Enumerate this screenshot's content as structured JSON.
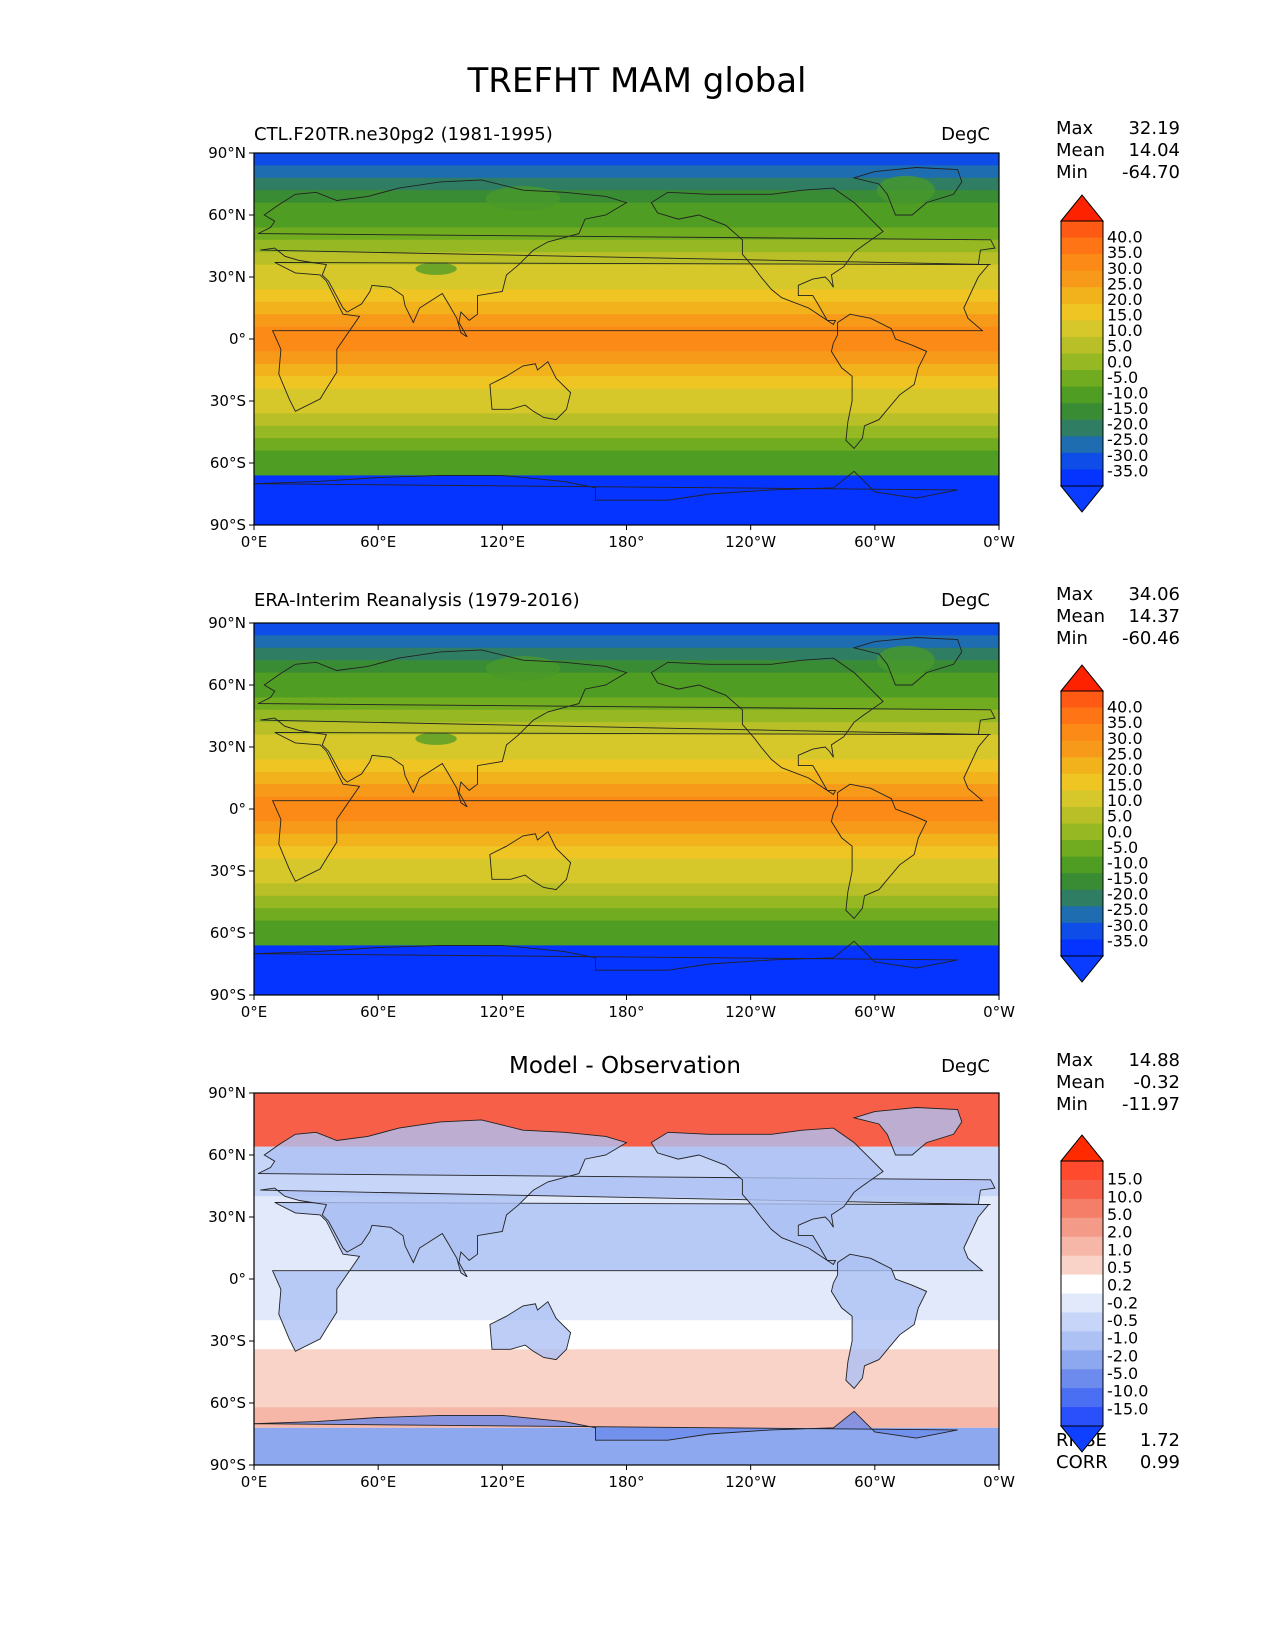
{
  "figure": {
    "title": "TREFHT MAM global"
  },
  "axes": {
    "lat_ticks": [
      "90°N",
      "60°N",
      "30°N",
      "0°",
      "30°S",
      "60°S",
      "90°S"
    ],
    "lon_ticks": [
      "0°E",
      "60°E",
      "120°E",
      "180°",
      "120°W",
      "60°W",
      "0°W"
    ]
  },
  "panels": [
    {
      "id": "model",
      "title_left": "CTL.F20TR.ne30pg2 (1981-1995)",
      "title_center": "",
      "units": "DegC",
      "stats": [
        {
          "label": "Max",
          "value": "32.19"
        },
        {
          "label": "Mean",
          "value": "14.04"
        },
        {
          "label": "Min",
          "value": "-64.70"
        }
      ],
      "colorbar": {
        "type": "temperature",
        "ticks": [
          "40.0",
          "35.0",
          "30.0",
          "25.0",
          "20.0",
          "15.0",
          "10.0",
          "5.0",
          "0.0",
          "-5.0",
          "-10.0",
          "-15.0",
          "-20.0",
          "-25.0",
          "-30.0",
          "-35.0"
        ],
        "colors": [
          "#ff5a14",
          "#ff7414",
          "#fb8a16",
          "#f79a1a",
          "#f2b21c",
          "#efc524",
          "#d6c82a",
          "#b9bf26",
          "#96b823",
          "#70ab20",
          "#4f9d22",
          "#3a8c34",
          "#2f7e63",
          "#1d6db0",
          "#0e4de8",
          "#0533ff"
        ],
        "over_color": "#ff2200",
        "under_color": "#0a3cff"
      }
    },
    {
      "id": "obs",
      "title_left": "ERA-Interim Reanalysis (1979-2016)",
      "title_center": "",
      "units": "DegC",
      "stats": [
        {
          "label": "Max",
          "value": "34.06"
        },
        {
          "label": "Mean",
          "value": "14.37"
        },
        {
          "label": "Min",
          "value": "-60.46"
        }
      ],
      "colorbar": {
        "type": "temperature",
        "ticks": [
          "40.0",
          "35.0",
          "30.0",
          "25.0",
          "20.0",
          "15.0",
          "10.0",
          "5.0",
          "0.0",
          "-5.0",
          "-10.0",
          "-15.0",
          "-20.0",
          "-25.0",
          "-30.0",
          "-35.0"
        ],
        "colors": [
          "#ff5a14",
          "#ff7414",
          "#fb8a16",
          "#f79a1a",
          "#f2b21c",
          "#efc524",
          "#d6c82a",
          "#b9bf26",
          "#96b823",
          "#70ab20",
          "#4f9d22",
          "#3a8c34",
          "#2f7e63",
          "#1d6db0",
          "#0e4de8",
          "#0533ff"
        ],
        "over_color": "#ff2200",
        "under_color": "#0a3cff"
      }
    },
    {
      "id": "diff",
      "title_left": "",
      "title_center": "Model - Observation",
      "units": "DegC",
      "stats": [
        {
          "label": "Max",
          "value": "14.88"
        },
        {
          "label": "Mean",
          "value": "-0.32"
        },
        {
          "label": "Min",
          "value": "-11.97"
        }
      ],
      "extra_stats": [
        {
          "label": "RMSE",
          "value": "1.72"
        },
        {
          "label": "CORR",
          "value": "0.99"
        }
      ],
      "colorbar": {
        "type": "difference",
        "ticks": [
          "15.0",
          "10.0",
          "5.0",
          "2.0",
          "1.0",
          "0.5",
          "0.2",
          "-0.2",
          "-0.5",
          "-1.0",
          "-2.0",
          "-5.0",
          "-10.0",
          "-15.0"
        ],
        "colors": [
          "#ff4a2e",
          "#f75f48",
          "#f47e68",
          "#f49a88",
          "#f6b6a8",
          "#f9d3c8",
          "#ffffff",
          "#e1e9fb",
          "#c7d5f8",
          "#adc1f4",
          "#8ea8ef",
          "#6c8bec",
          "#4b6ff2",
          "#2a50fb"
        ],
        "over_color": "#ff2a00",
        "under_color": "#1040ff"
      }
    }
  ]
}
